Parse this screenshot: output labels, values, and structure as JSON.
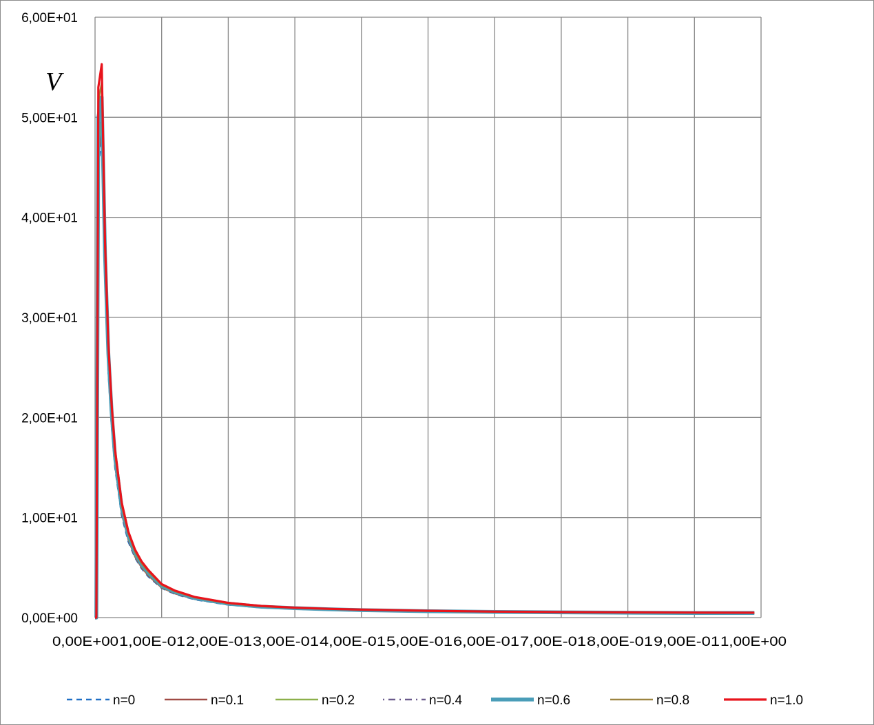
{
  "chart_data": {
    "type": "line",
    "title": "",
    "xlabel": "",
    "ylabel": "V",
    "xlim": [
      0,
      1.0
    ],
    "ylim": [
      0,
      60
    ],
    "grid": true,
    "legend_position": "bottom",
    "x_ticks": [
      0,
      0.1,
      0.2,
      0.3,
      0.4,
      0.5,
      0.6,
      0.7,
      0.8,
      0.9,
      1.0
    ],
    "x_tick_labels": [
      "0,00E+00",
      "1,00E-01",
      "2,00E-01",
      "3,00E-01",
      "4,00E-01",
      "5,00E-01",
      "6,00E-01",
      "7,00E-01",
      "8,00E-01",
      "9,00E-01",
      "1,00E+00"
    ],
    "y_ticks": [
      0,
      10,
      20,
      30,
      40,
      50,
      60
    ],
    "y_tick_labels": [
      "0,00E+00",
      "1,00E+01",
      "2,00E+01",
      "3,00E+01",
      "4,00E+01",
      "5,00E+01",
      "6,00E+01"
    ],
    "x": [
      0,
      0.002,
      0.005,
      0.01,
      0.015,
      0.02,
      0.025,
      0.03,
      0.04,
      0.05,
      0.06,
      0.07,
      0.08,
      0.1,
      0.12,
      0.15,
      0.2,
      0.25,
      0.3,
      0.35,
      0.4,
      0.5,
      0.6,
      0.7,
      0.8,
      0.9,
      0.99
    ],
    "series": [
      {
        "name": "n=0",
        "color": "#1f6fc5",
        "dash": "8,6",
        "width": 2.5,
        "values": [
          0,
          0.0,
          45.0,
          48.0,
          34.0,
          24.5,
          19.0,
          15.0,
          10.2,
          7.6,
          6.0,
          4.9,
          4.1,
          2.95,
          2.35,
          1.8,
          1.28,
          1.0,
          0.86,
          0.76,
          0.68,
          0.58,
          0.52,
          0.48,
          0.45,
          0.43,
          0.42
        ]
      },
      {
        "name": "n=0.1",
        "color": "#a04a45",
        "dash": "",
        "width": 2.5,
        "values": [
          0,
          0.0,
          46.0,
          49.0,
          34.5,
          25.0,
          19.3,
          15.2,
          10.4,
          7.8,
          6.1,
          5.0,
          4.2,
          3.0,
          2.4,
          1.84,
          1.31,
          1.02,
          0.88,
          0.78,
          0.7,
          0.6,
          0.53,
          0.49,
          0.46,
          0.44,
          0.43
        ]
      },
      {
        "name": "n=0.2",
        "color": "#8cb04a",
        "dash": "",
        "width": 2.5,
        "values": [
          0,
          0.0,
          47.0,
          50.0,
          35.0,
          25.4,
          19.6,
          15.5,
          10.6,
          7.9,
          6.2,
          5.1,
          4.3,
          3.05,
          2.45,
          1.87,
          1.33,
          1.04,
          0.9,
          0.79,
          0.71,
          0.61,
          0.54,
          0.5,
          0.47,
          0.45,
          0.44
        ]
      },
      {
        "name": "n=0.4",
        "color": "#6a5a8c",
        "dash": "2,6,10,6",
        "width": 2.5,
        "values": [
          0,
          0.0,
          48.5,
          51.0,
          35.6,
          25.9,
          20.0,
          15.8,
          10.8,
          8.1,
          6.35,
          5.2,
          4.4,
          3.12,
          2.5,
          1.91,
          1.36,
          1.07,
          0.92,
          0.81,
          0.73,
          0.62,
          0.55,
          0.51,
          0.48,
          0.46,
          0.45
        ]
      },
      {
        "name": "n=0.6",
        "color": "#4a9db8",
        "dash": "",
        "width": 5.5,
        "values": [
          0,
          0.0,
          50.0,
          52.0,
          36.2,
          26.4,
          20.4,
          16.1,
          11.0,
          8.25,
          6.5,
          5.3,
          4.5,
          3.2,
          2.56,
          1.95,
          1.39,
          1.09,
          0.94,
          0.83,
          0.75,
          0.64,
          0.57,
          0.52,
          0.49,
          0.47,
          0.46
        ]
      },
      {
        "name": "n=0.8",
        "color": "#9c8440",
        "dash": "",
        "width": 2.5,
        "values": [
          0,
          0.0,
          51.5,
          53.5,
          36.8,
          26.9,
          20.8,
          16.4,
          11.2,
          8.4,
          6.6,
          5.4,
          4.6,
          3.26,
          2.62,
          2.0,
          1.42,
          1.12,
          0.96,
          0.85,
          0.77,
          0.66,
          0.58,
          0.53,
          0.5,
          0.48,
          0.47
        ]
      },
      {
        "name": "n=1.0",
        "color": "#e8141c",
        "dash": "",
        "width": 3.2,
        "values": [
          0,
          0.0,
          53.0,
          55.3,
          37.5,
          27.4,
          21.2,
          16.8,
          11.5,
          8.6,
          6.8,
          5.6,
          4.75,
          3.35,
          2.7,
          2.06,
          1.47,
          1.16,
          0.99,
          0.88,
          0.8,
          0.68,
          0.6,
          0.55,
          0.52,
          0.5,
          0.49
        ]
      }
    ]
  }
}
